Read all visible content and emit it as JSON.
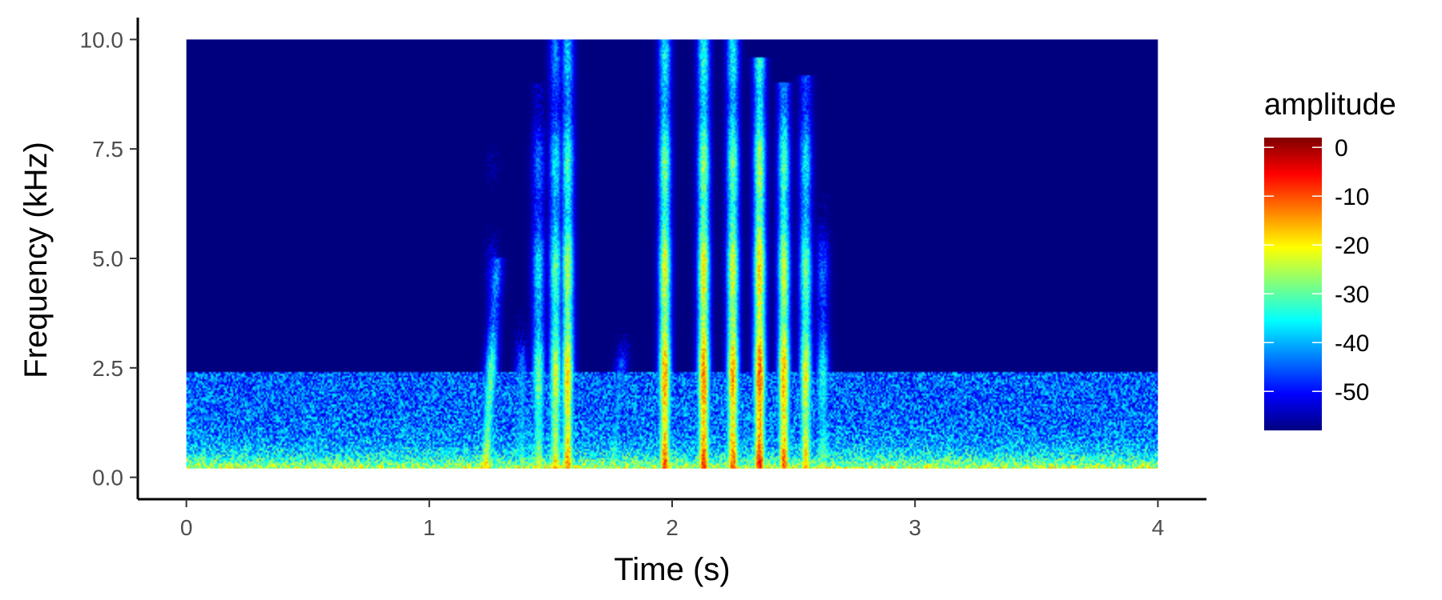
{
  "chart_data": {
    "type": "heatmap",
    "subtype": "spectrogram",
    "title": "",
    "xlabel": "Time (s)",
    "ylabel": "Frequency (kHz)",
    "xlim": [
      -0.2,
      4.2
    ],
    "ylim": [
      -0.5,
      10.5
    ],
    "data_extent": {
      "x": [
        0,
        4
      ],
      "y": [
        0.2,
        10.0
      ]
    },
    "x_ticks": [
      0,
      1,
      2,
      3,
      4
    ],
    "x_tick_labels": [
      "0",
      "1",
      "2",
      "3",
      "4"
    ],
    "y_ticks": [
      0,
      2.5,
      5,
      7.5,
      10
    ],
    "y_tick_labels": [
      "0.0",
      "2.5",
      "5.0",
      "7.5",
      "10.0"
    ],
    "grid": false,
    "background_value": -58,
    "colorscale": [
      "#00007f",
      "#0000ff",
      "#007fff",
      "#00ffff",
      "#7fff7f",
      "#ffff00",
      "#ff7f00",
      "#ff0000",
      "#7f0000"
    ],
    "legend": {
      "title": "amplitude",
      "placement": "right",
      "range": [
        -58,
        2
      ],
      "ticks": [
        0,
        -10,
        -20,
        -30,
        -40,
        -50
      ],
      "tick_labels": [
        "0",
        "-10",
        "-20",
        "-30",
        "-40",
        "-50"
      ]
    },
    "noise_band": {
      "f_max": 2.4,
      "mean_amplitude": -45
    },
    "calls": [
      {
        "t": 1.23,
        "f_max": 5.0,
        "peak": -20,
        "sweep": 0.05
      },
      {
        "t": 1.26,
        "f_max": 9.2,
        "peak": -40,
        "sweep": 0.0
      },
      {
        "t": 1.38,
        "f_max": 4.0,
        "peak": -30,
        "sweep": 0.0
      },
      {
        "t": 1.45,
        "f_max": 9.0,
        "peak": -25,
        "sweep": 0.0
      },
      {
        "t": 1.52,
        "f_max": 10.0,
        "peak": -20,
        "sweep": 0.0
      },
      {
        "t": 1.57,
        "f_max": 10.0,
        "peak": -15,
        "sweep": 0.0
      },
      {
        "t": 1.75,
        "f_max": 3.5,
        "peak": -30,
        "sweep": 0.08
      },
      {
        "t": 1.97,
        "f_max": 10.0,
        "peak": -12,
        "sweep": 0.0
      },
      {
        "t": 2.13,
        "f_max": 10.0,
        "peak": -10,
        "sweep": 0.0
      },
      {
        "t": 2.25,
        "f_max": 10.0,
        "peak": -12,
        "sweep": 0.0
      },
      {
        "t": 2.36,
        "f_max": 9.6,
        "peak": -8,
        "sweep": 0.0
      },
      {
        "t": 2.46,
        "f_max": 9.0,
        "peak": -12,
        "sweep": 0.0
      },
      {
        "t": 2.55,
        "f_max": 9.2,
        "peak": -18,
        "sweep": 0.0
      },
      {
        "t": 2.62,
        "f_max": 6.5,
        "peak": -28,
        "sweep": 0.0
      }
    ]
  }
}
